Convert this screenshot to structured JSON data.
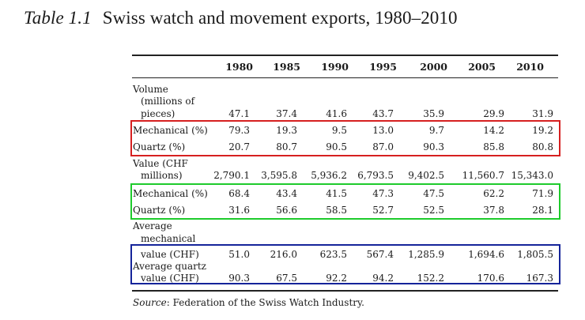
{
  "caption": {
    "label": "Table 1.1",
    "title": "Swiss watch and movement exports, 1980–2010"
  },
  "table": {
    "columns": [
      "1980",
      "1985",
      "1990",
      "1995",
      "2000",
      "2005",
      "2010"
    ],
    "sections": {
      "volume": {
        "label_lines": [
          "Volume",
          "(millions of",
          "pieces)"
        ],
        "values": [
          "47.1",
          "37.4",
          "41.6",
          "43.7",
          "35.9",
          "29.9",
          "31.9"
        ]
      },
      "volume_mechanical": {
        "label": "Mechanical (%)",
        "values": [
          "79.3",
          "19.3",
          "9.5",
          "13.0",
          "9.7",
          "14.2",
          "19.2"
        ]
      },
      "volume_quartz": {
        "label": "Quartz (%)",
        "values": [
          "20.7",
          "80.7",
          "90.5",
          "87.0",
          "90.3",
          "85.8",
          "80.8"
        ]
      },
      "value": {
        "label_lines": [
          "Value (CHF",
          "millions)"
        ],
        "values": [
          "2,790.1",
          "3,595.8",
          "5,936.2",
          "6,793.5",
          "9,402.5",
          "11,560.7",
          "15,343.0"
        ]
      },
      "value_mechanical": {
        "label": "Mechanical (%)",
        "values": [
          "68.4",
          "43.4",
          "41.5",
          "47.3",
          "47.5",
          "62.2",
          "71.9"
        ]
      },
      "value_quartz": {
        "label": "Quartz (%)",
        "values": [
          "31.6",
          "56.6",
          "58.5",
          "52.7",
          "52.5",
          "37.8",
          "28.1"
        ]
      },
      "avg_mechanical": {
        "label_lines": [
          "Average",
          "mechanical",
          "value (CHF)"
        ],
        "values": [
          "51.0",
          "216.0",
          "623.5",
          "567.4",
          "1,285.9",
          "1,694.6",
          "1,805.5"
        ]
      },
      "avg_quartz": {
        "label_lines": [
          "Average quartz",
          "value (CHF)"
        ],
        "values": [
          "90.3",
          "67.5",
          "92.2",
          "94.2",
          "152.2",
          "170.6",
          "167.3"
        ]
      }
    }
  },
  "highlight_colors": {
    "red": "#d62020",
    "green": "#1ecb2c",
    "blue": "#15249a"
  },
  "source": {
    "label": "Source",
    "text": ": Federation of the Swiss Watch Industry."
  }
}
